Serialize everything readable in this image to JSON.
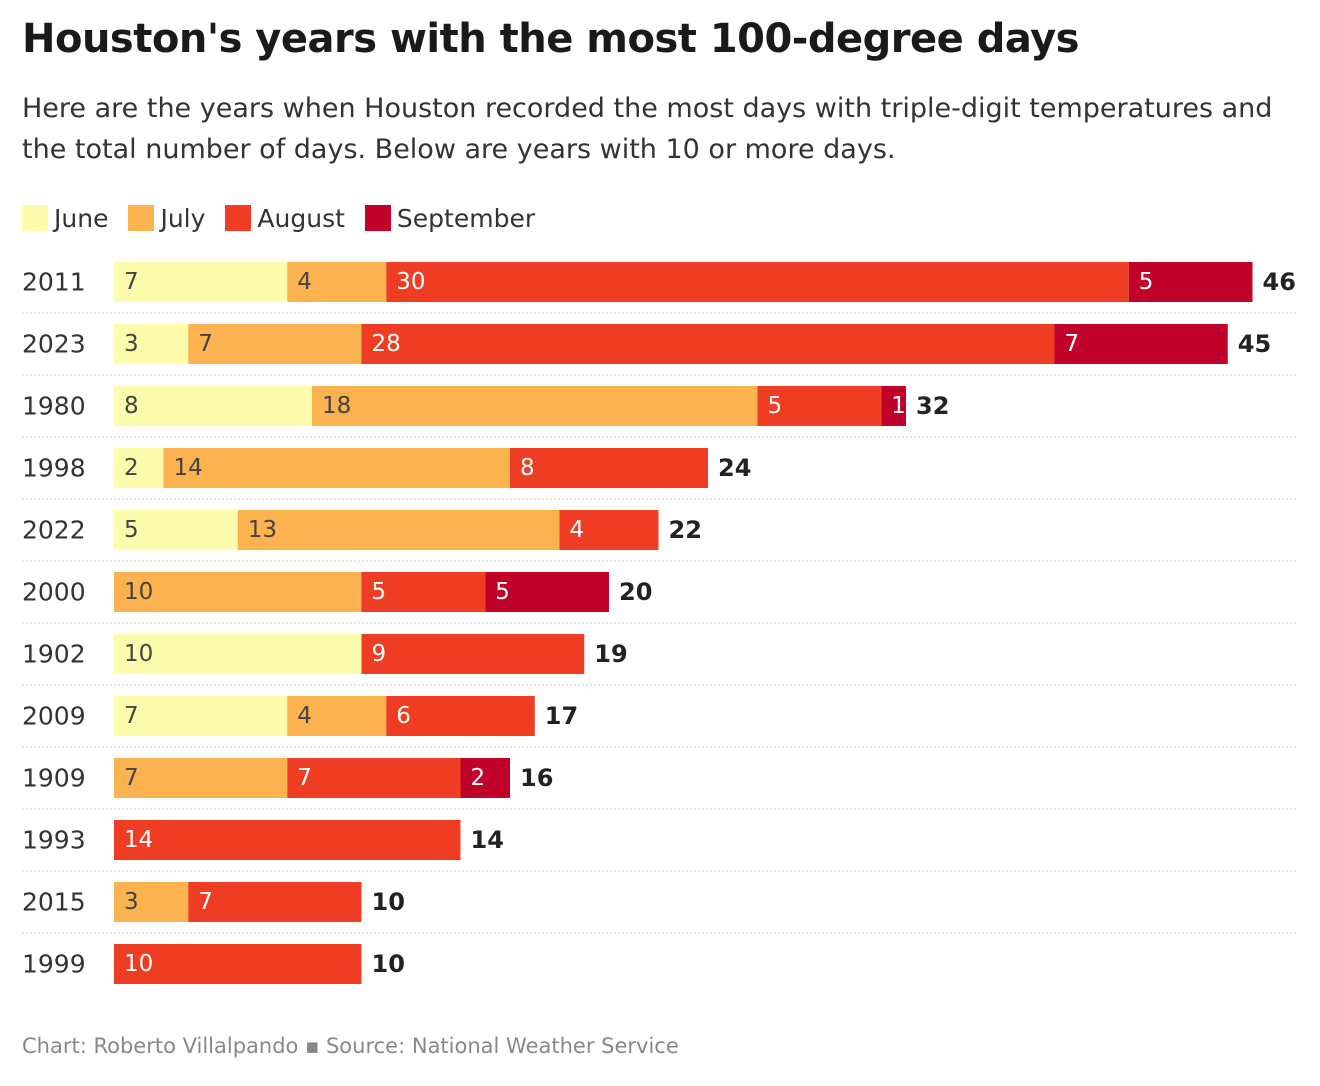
{
  "header": {
    "title": "Houston's years with the most 100-degree days",
    "subtitle": "Here are the years when Houston recorded the most days with triple-digit temperatures and the total number of days. Below are years with 10 or more days."
  },
  "legend": [
    {
      "label": "June",
      "color": "#fdfcac"
    },
    {
      "label": "July",
      "color": "#fcb24e"
    },
    {
      "label": "August",
      "color": "#ef3d23"
    },
    {
      "label": "September",
      "color": "#c0022b"
    }
  ],
  "chart_data": {
    "type": "bar",
    "orientation": "horizontal",
    "stacked": true,
    "categories": [
      "2011",
      "2023",
      "1980",
      "1998",
      "2022",
      "2000",
      "1902",
      "2009",
      "1909",
      "1993",
      "2015",
      "1999"
    ],
    "series": [
      {
        "name": "June",
        "color": "#fdfcac",
        "values": [
          7,
          3,
          8,
          2,
          5,
          0,
          10,
          7,
          0,
          0,
          0,
          0
        ]
      },
      {
        "name": "July",
        "color": "#fcb24e",
        "values": [
          4,
          7,
          18,
          14,
          13,
          10,
          0,
          4,
          7,
          0,
          3,
          0
        ]
      },
      {
        "name": "August",
        "color": "#ef3d23",
        "values": [
          30,
          28,
          5,
          8,
          4,
          5,
          9,
          6,
          7,
          14,
          7,
          10
        ]
      },
      {
        "name": "September",
        "color": "#c0022b",
        "values": [
          5,
          7,
          1,
          0,
          0,
          5,
          0,
          0,
          2,
          0,
          0,
          0
        ]
      }
    ],
    "totals": [
      46,
      45,
      32,
      24,
      22,
      20,
      19,
      17,
      16,
      14,
      10,
      10
    ],
    "xlim": [
      0,
      46
    ],
    "grid": false,
    "legend_position": "top-left"
  },
  "footer": {
    "credit": "Chart: Roberto Villalpando ▪ Source: National Weather Service"
  }
}
